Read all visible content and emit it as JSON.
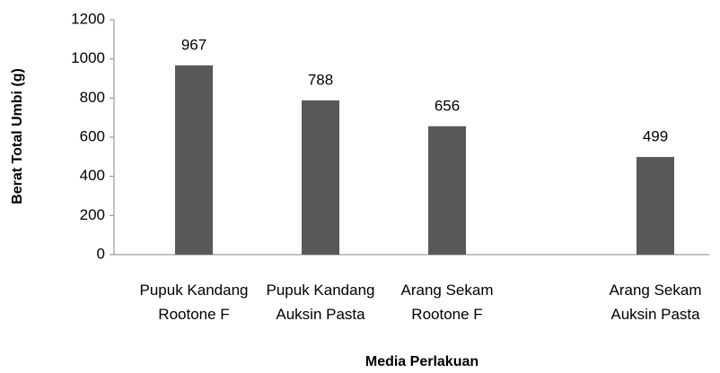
{
  "chart_data": {
    "type": "bar",
    "categories": [
      "Pupuk Kandang\nRootone F",
      "Pupuk Kandang\nAuksin Pasta",
      "Arang Sekam\nRootone F",
      "Arang Sekam\nAuksin Pasta"
    ],
    "values": [
      967,
      788,
      656,
      499
    ],
    "color": "#595959",
    "ylim": [
      0,
      1200
    ],
    "yticks": [
      0,
      200,
      400,
      600,
      800,
      1000,
      1200
    ],
    "x_label": "Media Perlakuan",
    "y_label": "Berat Total Umbi (g)",
    "data_labels": true
  }
}
